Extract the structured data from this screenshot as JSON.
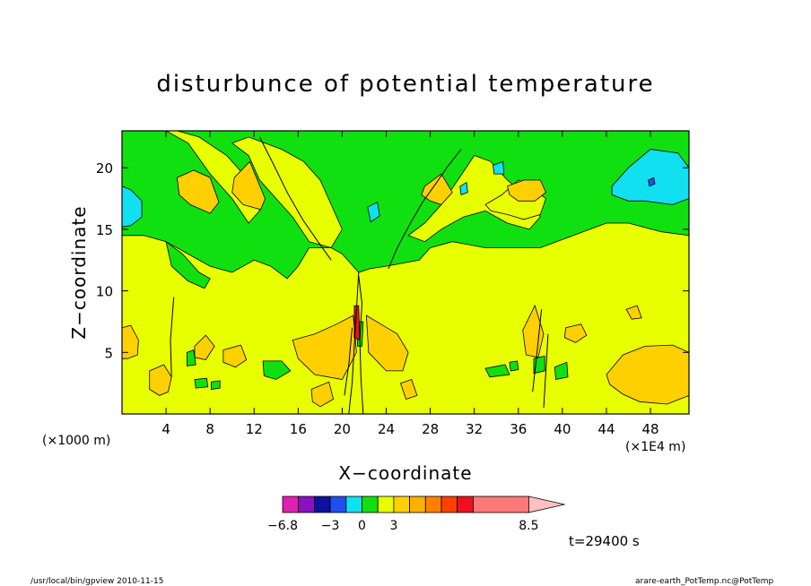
{
  "chart_data": {
    "type": "heatmap",
    "title": "disturbunce of potential temperature",
    "xlabel": "X−coordinate",
    "ylabel": "Z−coordinate",
    "x_units_left": "(×1000 m)",
    "x_units_right": "(×1E4 m)",
    "xlim": [
      0,
      51.5
    ],
    "ylim": [
      0,
      23
    ],
    "x_ticks": [
      4,
      8,
      12,
      16,
      20,
      24,
      28,
      32,
      36,
      40,
      44,
      48
    ],
    "y_ticks": [
      5,
      10,
      15,
      20
    ],
    "colorbar": {
      "colors": [
        "#e020b0",
        "#8a10c0",
        "#1010a0",
        "#2050f0",
        "#10e0f0",
        "#10e010",
        "#e8ff00",
        "#ffd000",
        "#ffb000",
        "#ff8000",
        "#ff4000",
        "#ee1020",
        "#ff7878"
      ],
      "extend_color": "#ffc0c0",
      "tick_labels": [
        "−6.8",
        "−3",
        "0",
        "3",
        "8.5"
      ],
      "tick_index": [
        0,
        3,
        5,
        7,
        13
      ]
    },
    "regions": [
      {
        "level": "green",
        "color": "#10e010",
        "x": [
          0,
          51.5,
          51.5,
          49,
          46,
          44,
          41,
          38,
          35,
          33,
          30,
          28,
          27,
          24,
          22.5,
          21.5,
          20,
          19,
          17,
          16,
          15,
          13.5,
          12,
          10,
          8,
          6,
          4,
          2,
          0
        ],
        "z": [
          23,
          23,
          14.5,
          14.8,
          15.5,
          15.5,
          14.5,
          13.5,
          13.5,
          13.5,
          14,
          13.5,
          12.5,
          12,
          11.8,
          11.5,
          13,
          13.5,
          13.5,
          12,
          11,
          12,
          12.5,
          11.5,
          12,
          13,
          14,
          14.5,
          14.5
        ]
      },
      {
        "level": "green",
        "color": "#10e010",
        "x": [
          4,
          5.5,
          7,
          8,
          7.5,
          6,
          4.5
        ],
        "z": [
          14,
          13,
          11.5,
          11,
          10.2,
          10.8,
          12
        ]
      },
      {
        "level": "yellow",
        "color": "#e8ff00",
        "x": [
          4,
          6,
          8,
          10,
          11.5,
          12.5,
          11.5,
          9.5,
          7,
          5
        ],
        "z": [
          23,
          22,
          19.5,
          17.5,
          15.5,
          16.5,
          19,
          21,
          22.5,
          23
        ]
      },
      {
        "level": "yellow",
        "color": "#e8ff00",
        "x": [
          10,
          11.5,
          12.5,
          14,
          15.5,
          17,
          19,
          20,
          19,
          18,
          16.5,
          14.5,
          13,
          11.5
        ],
        "z": [
          22,
          21,
          19,
          17.5,
          16,
          14,
          13.5,
          15,
          17,
          19,
          20.5,
          21.5,
          22,
          22.5
        ]
      },
      {
        "level": "yellow",
        "color": "#e8ff00",
        "x": [
          26,
          27.5,
          29,
          30.5,
          32,
          33.5,
          35,
          37,
          38,
          37,
          35,
          33,
          31,
          29,
          27.5
        ],
        "z": [
          14.5,
          15.5,
          17,
          19,
          21,
          20.5,
          19,
          17.5,
          16,
          15,
          15.5,
          16.5,
          16,
          15,
          14
        ]
      },
      {
        "level": "yellow",
        "color": "#e8ff00",
        "x": [
          33,
          34.5,
          36,
          37,
          38.5,
          38,
          36.5,
          35,
          33.5
        ],
        "z": [
          17,
          17.8,
          19,
          18.5,
          17.5,
          16.2,
          15.8,
          16.2,
          16.5
        ]
      },
      {
        "level": "cyan",
        "color": "#10e0f0",
        "x": [
          44.5,
          46,
          48,
          50.5,
          51.5,
          51.5,
          50,
          47.5,
          46,
          44.5
        ],
        "z": [
          18.5,
          20,
          21.5,
          21.2,
          20,
          17.5,
          17,
          17.3,
          17.3,
          17.8
        ]
      },
      {
        "level": "cyan",
        "color": "#10e0f0",
        "x": [
          0,
          0.8,
          1.8,
          1.8,
          0.8,
          0
        ],
        "z": [
          18.5,
          18.2,
          17.3,
          16,
          15.3,
          15.2
        ]
      },
      {
        "level": "cyan",
        "color": "#10e0f0",
        "x": [
          22.3,
          23.2,
          23.4,
          22.6
        ],
        "z": [
          16.8,
          17.2,
          16.1,
          15.6
        ]
      },
      {
        "level": "cyan",
        "color": "#10e0f0",
        "x": [
          30.7,
          31.3,
          31.4,
          30.8
        ],
        "z": [
          18.5,
          18.8,
          18,
          17.8
        ]
      },
      {
        "level": "cyan",
        "color": "#10e0f0",
        "x": [
          33.7,
          34.6,
          34.7,
          33.8
        ],
        "z": [
          20.2,
          20.5,
          19.5,
          19.5
        ]
      },
      {
        "level": "blue",
        "color": "#2050f0",
        "x": [
          47.8,
          48.3,
          48.4,
          47.9
        ],
        "z": [
          19,
          19.2,
          18.7,
          18.5
        ]
      },
      {
        "level": "orange",
        "color": "#ffd000",
        "x": [
          5,
          6.5,
          8,
          8.8,
          8,
          6.2,
          5.2
        ],
        "z": [
          19.2,
          19.8,
          19.2,
          17.2,
          16.3,
          17,
          17.8
        ]
      },
      {
        "level": "orange",
        "color": "#ffd000",
        "x": [
          10.2,
          11.6,
          13,
          12.6,
          11,
          10
        ],
        "z": [
          19.2,
          20.5,
          17.5,
          16.6,
          17,
          18
        ]
      },
      {
        "level": "orange",
        "color": "#ffd000",
        "x": [
          27.5,
          29,
          30,
          29,
          28,
          27.2
        ],
        "z": [
          18.5,
          19.5,
          18,
          17,
          17.3,
          17.8
        ]
      },
      {
        "level": "orange",
        "color": "#ffd000",
        "x": [
          35,
          36.5,
          38,
          38.5,
          37.5,
          36,
          35.2
        ],
        "z": [
          18.5,
          19,
          19,
          18,
          17.3,
          17.3,
          17.8
        ]
      },
      {
        "level": "orange",
        "color": "#ffd000",
        "x": [
          0,
          0.8,
          1.5,
          1.4,
          0.5,
          0
        ],
        "z": [
          7,
          7.2,
          6,
          4.8,
          4.5,
          4.5
        ]
      },
      {
        "level": "orange",
        "color": "#ffd000",
        "x": [
          2.5,
          3.8,
          4.5,
          4.2,
          3.4,
          2.5
        ],
        "z": [
          3.5,
          4,
          3,
          1.8,
          1.5,
          2
        ]
      },
      {
        "level": "orange",
        "color": "#ffd000",
        "x": [
          6.6,
          7.6,
          8.4,
          7.6,
          6.6
        ],
        "z": [
          5.5,
          6.4,
          5.5,
          4.4,
          4.6
        ]
      },
      {
        "level": "orange",
        "color": "#ffd000",
        "x": [
          9.2,
          10.8,
          11.3,
          10.3,
          9.2
        ],
        "z": [
          5.2,
          5.6,
          4.4,
          3.8,
          4.2
        ]
      },
      {
        "level": "orange",
        "color": "#ffd000",
        "x": [
          15.5,
          17.5,
          19.5,
          21,
          21.3,
          20,
          17.5,
          16
        ],
        "z": [
          6,
          6.5,
          7.3,
          8,
          5,
          2.8,
          3.2,
          4.5
        ]
      },
      {
        "level": "orange",
        "color": "#ffd000",
        "x": [
          17.2,
          18.8,
          19.2,
          18,
          17.3
        ],
        "z": [
          2,
          2.6,
          1.2,
          0.6,
          1
        ]
      },
      {
        "level": "orange",
        "color": "#ffd000",
        "x": [
          22.2,
          23.5,
          25,
          26,
          25.5,
          24,
          22.4
        ],
        "z": [
          8,
          7.3,
          6.5,
          5,
          3.5,
          3.5,
          5
        ]
      },
      {
        "level": "orange",
        "color": "#ffd000",
        "x": [
          25.3,
          26.3,
          26.8,
          25.8
        ],
        "z": [
          2.5,
          2.8,
          1.5,
          1.2
        ]
      },
      {
        "level": "orange",
        "color": "#ffd000",
        "x": [
          36.4,
          37.5,
          38.3,
          37.8,
          36.7
        ],
        "z": [
          6.8,
          8.8,
          6.5,
          4.6,
          4.8
        ]
      },
      {
        "level": "orange",
        "color": "#ffd000",
        "x": [
          40.3,
          41.7,
          42.2,
          41.2,
          40.2
        ],
        "z": [
          7,
          7.3,
          6.4,
          5.8,
          6.2
        ]
      },
      {
        "level": "orange",
        "color": "#ffd000",
        "x": [
          44,
          45.5,
          47.5,
          50,
          51.5,
          51.5,
          49.5,
          47,
          45.5,
          44.3
        ],
        "z": [
          3.2,
          4.8,
          5.5,
          5.6,
          5,
          1.5,
          0.8,
          1,
          1.6,
          2.4
        ]
      },
      {
        "level": "orange",
        "color": "#ffd000",
        "x": [
          45.8,
          46.8,
          47.2,
          46.3
        ],
        "z": [
          8.5,
          8.8,
          7.8,
          7.7
        ]
      },
      {
        "level": "green",
        "color": "#10e010",
        "x": [
          12.8,
          14.5,
          15.3,
          14,
          12.9
        ],
        "z": [
          4.3,
          4.3,
          3.5,
          2.8,
          3.1
        ]
      },
      {
        "level": "green",
        "color": "#10e010",
        "x": [
          5.9,
          6.5,
          6.7,
          5.9
        ],
        "z": [
          5,
          5.2,
          4,
          3.9
        ]
      },
      {
        "level": "green",
        "color": "#10e010",
        "x": [
          6.6,
          7.7,
          7.8,
          6.7
        ],
        "z": [
          2.8,
          2.9,
          2.2,
          2.1
        ]
      },
      {
        "level": "green",
        "color": "#10e010",
        "x": [
          33,
          34.8,
          35.2,
          33.4
        ],
        "z": [
          3.7,
          4,
          3.2,
          3
        ]
      },
      {
        "level": "green",
        "color": "#10e010",
        "x": [
          37.4,
          38.4,
          38.4,
          37.4
        ],
        "z": [
          4.5,
          4.7,
          3.5,
          3.3
        ]
      },
      {
        "level": "green",
        "color": "#10e010",
        "x": [
          39.3,
          40.4,
          40.5,
          39.4
        ],
        "z": [
          3.8,
          4.2,
          3,
          2.8
        ]
      },
      {
        "level": "green",
        "color": "#10e010",
        "x": [
          8.1,
          8.9,
          8.9,
          8.1
        ],
        "z": [
          2.6,
          2.7,
          2.1,
          2
        ]
      },
      {
        "level": "green",
        "color": "#10e010",
        "x": [
          35.2,
          35.9,
          36,
          35.3
        ],
        "z": [
          4.2,
          4.3,
          3.6,
          3.5
        ]
      },
      {
        "level": "green",
        "color": "#10e010",
        "x": [
          21.3,
          21.9,
          21.8,
          21.4
        ],
        "z": [
          7.5,
          7.5,
          5.5,
          5.5
        ]
      },
      {
        "level": "red",
        "color": "#ee1020",
        "x": [
          21.1,
          21.5,
          21.6,
          21.1
        ],
        "z": [
          8.8,
          8.8,
          6,
          6.2
        ]
      }
    ],
    "contour_lines": [
      {
        "x": [
          24.2,
          25,
          26.2,
          27.3,
          28.5,
          29.5,
          30.8
        ],
        "z": [
          11.8,
          13.5,
          15.5,
          17.2,
          18.7,
          20,
          21.5
        ]
      },
      {
        "x": [
          12.5,
          13.8,
          15,
          16.4,
          17.8,
          19
        ],
        "z": [
          22.5,
          20.2,
          18,
          15.8,
          14,
          12.5
        ]
      },
      {
        "x": [
          20.6,
          20.9,
          21.1,
          21.3,
          21.5
        ],
        "z": [
          0,
          2.5,
          5.5,
          8.5,
          11.5
        ]
      },
      {
        "x": [
          21.9,
          21.7,
          21.6,
          21.8,
          21.5
        ],
        "z": [
          0,
          3,
          6,
          9,
          11.2
        ]
      },
      {
        "x": [
          20.2,
          20.6,
          20.9
        ],
        "z": [
          1.5,
          4,
          7
        ]
      },
      {
        "x": [
          37.3,
          37.7,
          38.1
        ],
        "z": [
          1.8,
          5,
          8.5
        ]
      },
      {
        "x": [
          4.5,
          4.4,
          4.7
        ],
        "z": [
          3,
          6,
          9.5
        ]
      },
      {
        "x": [
          38.3,
          38.5,
          38.7
        ],
        "z": [
          0.5,
          3.5,
          6.5
        ]
      }
    ],
    "time_label": "t=29400 s",
    "footer_left": "/usr/local/bin/gpview  2010-11-15",
    "footer_right": "arare-earth_PotTemp.nc@PotTemp"
  }
}
